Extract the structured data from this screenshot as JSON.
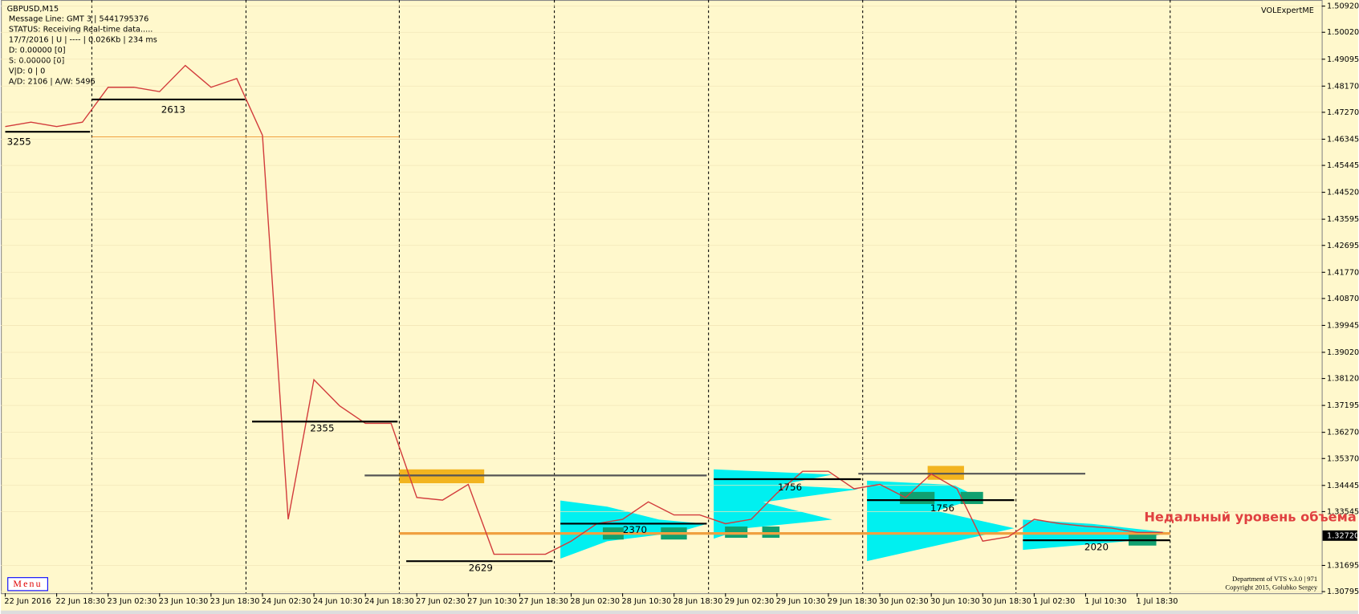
{
  "chart_data": {
    "type": "line",
    "title": "GBPUSD,M15",
    "info": [
      "Message Line: GMT 3 | 5441795376",
      "STATUS:  Receiving Real-time data.....",
      "17/7/2016 | U | ---- | 0.026Kb | 234 ms",
      "D: 0.00000  [0]",
      "S: 0.00000  [0]",
      "V|D: 0 | 0",
      "A/D: 2106 | A/W: 5496"
    ],
    "indicator": "VOLExpertME",
    "footer": [
      "Department of VTS  v.3.0 | 971",
      "Copyright 2015, Golubko Sergey"
    ],
    "menu": "Menu",
    "annotation": "Недальный уровень объема",
    "categories": [
      "22 Jun 2016",
      null,
      "22 Jun 18:30",
      null,
      "23 Jun 02:30",
      null,
      "23 Jun 10:30",
      null,
      "23 Jun 18:30",
      null,
      "24 Jun 02:30",
      null,
      "24 Jun 10:30",
      null,
      "24 Jun 18:30",
      null,
      "27 Jun 02:30",
      null,
      "27 Jun 10:30",
      null,
      "27 Jun 18:30",
      null,
      "28 Jun 02:30",
      null,
      "28 Jun 10:30",
      null,
      "28 Jun 18:30",
      null,
      "29 Jun 02:30",
      null,
      "29 Jun 10:30",
      null,
      "29 Jun 18:30",
      null,
      "30 Jun 02:30",
      null,
      "30 Jun 10:30",
      null,
      "30 Jun 18:30",
      null,
      "1 Jul 02:30",
      null,
      "1 Jul 10:30",
      null,
      "1 Jul 18:30",
      null
    ],
    "series": [
      {
        "name": "GBPUSD",
        "color": "#d23c3c",
        "values": [
          1.4678,
          1.4693,
          1.4678,
          1.4693,
          1.4813,
          1.4813,
          1.4798,
          1.4888,
          1.4813,
          1.4843,
          1.4648,
          1.3328,
          1.3808,
          1.3718,
          1.3658,
          1.3658,
          1.3403,
          1.3394,
          1.3448,
          1.3208,
          1.3208,
          1.3208,
          1.3253,
          1.3313,
          1.3328,
          1.3388,
          1.3343,
          1.3343,
          1.3313,
          1.3328,
          1.3418,
          1.3493,
          1.3493,
          1.3433,
          1.3448,
          1.3403,
          1.3484,
          1.3433,
          1.3253,
          1.3268,
          1.3328,
          1.3313,
          1.3304,
          1.3298,
          1.3283,
          1.3283
        ]
      }
    ],
    "levels": [
      {
        "label": "3255",
        "value": 1.466
      },
      {
        "label": "2613",
        "value": 1.4771
      },
      {
        "label": "2355",
        "value": 1.3664
      },
      {
        "label": "2629",
        "value": 1.3184
      },
      {
        "label": "2370",
        "value": 1.3313
      },
      {
        "label": "1756",
        "value": 1.3466
      },
      {
        "label": "1756",
        "value": 1.3394
      },
      {
        "label": "2020",
        "value": 1.3256
      }
    ],
    "last_price": {
      "value": 1.3272,
      "label": "1.32720"
    },
    "ylim": [
      1.3074,
      1.5113
    ],
    "yticks": [
      {
        "value": 1.5092,
        "label": "1.50920"
      },
      {
        "value": 1.5002,
        "label": "1.50020"
      },
      {
        "value": 1.49095,
        "label": "1.49095"
      },
      {
        "value": 1.4817,
        "label": "1.48170"
      },
      {
        "value": 1.4727,
        "label": "1.47270"
      },
      1.46345,
      1.45445,
      {
        "value": 1.4452,
        "label": "1.44520"
      },
      1.43595,
      1.42695,
      {
        "value": 1.4177,
        "label": "1.41770"
      },
      {
        "value": 1.4087,
        "label": "1.40870"
      },
      1.39945,
      {
        "value": 1.3902,
        "label": "1.39020"
      },
      {
        "value": 1.3812,
        "label": "1.38120"
      },
      1.37195,
      {
        "value": 1.3627,
        "label": "1.36270"
      },
      {
        "value": 1.3537,
        "label": "1.35370"
      },
      1.34445,
      1.33545,
      1.31695,
      1.30795
    ]
  }
}
